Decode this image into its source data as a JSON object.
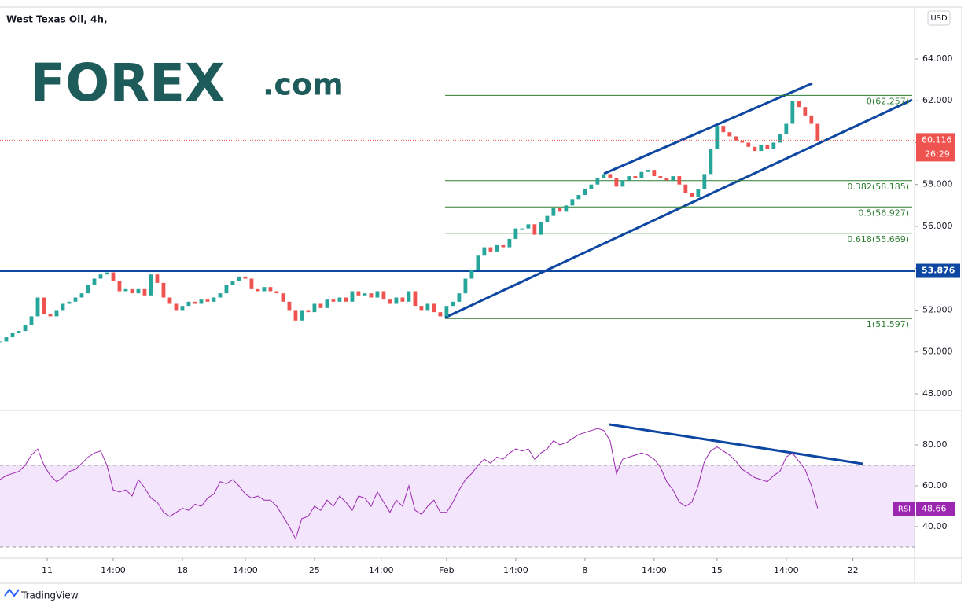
{
  "chart_data": {
    "type": "candlestick",
    "title": "West Texas Oil, 4h,",
    "currency": "USD",
    "logo": "FOREX",
    "logo_suffix": ".com",
    "footer": "TradingView",
    "up_color": "#26a69a",
    "down_color": "#ef5350",
    "close": [
      50.5,
      50.7,
      50.9,
      51.0,
      51.3,
      51.7,
      52.6,
      51.8,
      51.7,
      52.0,
      52.3,
      52.4,
      52.6,
      52.8,
      53.2,
      53.5,
      53.7,
      53.8,
      53.4,
      52.9,
      53.0,
      52.8,
      53.0,
      52.7,
      53.7,
      53.3,
      52.6,
      52.3,
      52.0,
      52.2,
      52.4,
      52.3,
      52.5,
      52.4,
      52.6,
      52.8,
      53.2,
      53.4,
      53.6,
      53.5,
      53.0,
      52.9,
      53.1,
      52.9,
      52.8,
      52.4,
      52.0,
      51.5,
      52.0,
      51.9,
      52.3,
      52.1,
      52.5,
      52.4,
      52.6,
      52.4,
      52.9,
      52.7,
      52.8,
      52.6,
      52.9,
      52.5,
      52.3,
      52.6,
      52.4,
      52.9,
      52.2,
      52.0,
      52.3,
      51.9,
      51.7,
      52.2,
      52.4,
      52.8,
      53.5,
      53.9,
      54.6,
      55.0,
      54.8,
      55.1,
      55.0,
      55.4,
      55.9,
      55.9,
      56.1,
      55.6,
      56.2,
      56.5,
      56.9,
      56.7,
      57.0,
      57.3,
      57.5,
      57.8,
      58.0,
      58.3,
      58.5,
      58.3,
      57.9,
      58.2,
      58.4,
      58.3,
      58.6,
      58.7,
      58.4,
      58.3,
      58.2,
      58.4,
      58.0,
      57.6,
      57.4,
      57.8,
      58.5,
      59.7,
      60.8,
      60.5,
      60.3,
      60.1,
      60.0,
      59.8,
      59.6,
      59.9,
      59.7,
      60.0,
      60.4,
      60.9,
      62.0,
      61.7,
      61.3,
      60.9,
      60.1
    ],
    "xlim": [
      0,
      145.4
    ],
    "xticks": [
      {
        "value": 7.5,
        "label": "11"
      },
      {
        "value": 18,
        "label": "14:00"
      },
      {
        "value": 29,
        "label": "18"
      },
      {
        "value": 39,
        "label": "14:00"
      },
      {
        "value": 50,
        "label": "25"
      },
      {
        "value": 60.6,
        "label": "14:00"
      },
      {
        "value": 71,
        "label": "Feb"
      },
      {
        "value": 82,
        "label": "14:00"
      },
      {
        "value": 93,
        "label": "8"
      },
      {
        "value": 104,
        "label": "14:00"
      },
      {
        "value": 114,
        "label": "15"
      },
      {
        "value": 125,
        "label": "14:00"
      },
      {
        "value": 135.6,
        "label": "22"
      }
    ],
    "ylim": [
      47.21,
      66.44
    ],
    "yticks": [
      {
        "value": 48,
        "label": "48.000"
      },
      {
        "value": 50,
        "label": "50.000"
      },
      {
        "value": 52,
        "label": "52.000"
      },
      {
        "value": 54,
        "label": "54.000"
      },
      {
        "value": 56,
        "label": "56.000"
      },
      {
        "value": 58,
        "label": "58.000"
      },
      {
        "value": 60,
        "label": "60.000"
      },
      {
        "value": 62,
        "label": "62.000"
      },
      {
        "value": 64,
        "label": "64.000"
      }
    ],
    "last_price": 60.116,
    "countdown": "26:29",
    "level": 53.876,
    "level_color": "#0d47a1",
    "fib": [
      {
        "value": 62.257,
        "label": "0(62.257)"
      },
      {
        "value": 58.185,
        "label": "0.382(58.185)"
      },
      {
        "value": 56.927,
        "label": "0.5(56.927)"
      },
      {
        "value": 55.669,
        "label": "0.618(55.669)"
      },
      {
        "value": 51.597,
        "label": "1(51.597)"
      }
    ],
    "rsi": {
      "name": "RSI",
      "color": "#9c27b0",
      "last": 48.66,
      "band": [
        30,
        70
      ],
      "ylim": [
        24.6,
        96.9
      ],
      "yticks": [
        {
          "value": 40,
          "label": "40.00"
        },
        {
          "value": 60,
          "label": "60.00"
        },
        {
          "value": 80,
          "label": "80.00"
        }
      ],
      "values": [
        63,
        65,
        66,
        67,
        70,
        75,
        78,
        70,
        65,
        62,
        64,
        67,
        68,
        71,
        74,
        76,
        77,
        70,
        58,
        57,
        58,
        55,
        63,
        59,
        54,
        52,
        47,
        45,
        47,
        49,
        48,
        51,
        50,
        54,
        56,
        62,
        61,
        63,
        60,
        56,
        54,
        55,
        53,
        53,
        50,
        45,
        40,
        34,
        44,
        45,
        50,
        48,
        53,
        50,
        55,
        52,
        48,
        55,
        54,
        50,
        57,
        52,
        47,
        53,
        50,
        60,
        48,
        46,
        50,
        53,
        47,
        47,
        52,
        58,
        63,
        66,
        70,
        73,
        71,
        74,
        73,
        76,
        78,
        77,
        78,
        73,
        76,
        78,
        82,
        80,
        81,
        83,
        85,
        86,
        87,
        88,
        87,
        82,
        66,
        73,
        74,
        75,
        76,
        75,
        73,
        69,
        62,
        58,
        52,
        50,
        52,
        60,
        72,
        77,
        79,
        77,
        75,
        72,
        68,
        66,
        64,
        63,
        62,
        65,
        67,
        74,
        76,
        72,
        68,
        60,
        49
      ]
    }
  }
}
